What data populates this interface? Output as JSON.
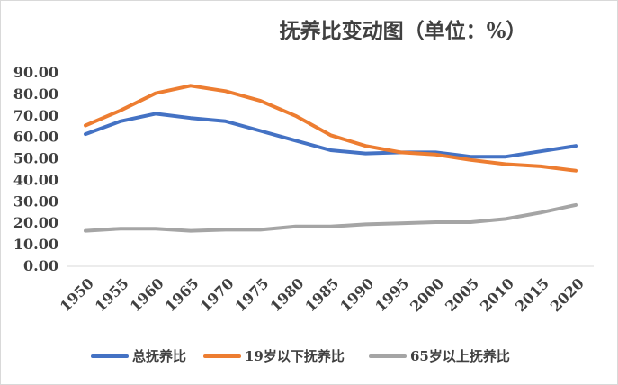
{
  "chart_data": {
    "type": "line",
    "title": "抚养比变动图（单位：%）",
    "x": [
      "1950",
      "1955",
      "1960",
      "1965",
      "1970",
      "1975",
      "1980",
      "1985",
      "1990",
      "1995",
      "2000",
      "2005",
      "2010",
      "2015",
      "2020"
    ],
    "ylim": [
      0,
      90
    ],
    "yticks": [
      0,
      10,
      20,
      30,
      40,
      50,
      60,
      70,
      80,
      90
    ],
    "ytick_labels": [
      "0.00",
      "10.00",
      "20.00",
      "30.00",
      "40.00",
      "50.00",
      "60.00",
      "70.00",
      "80.00",
      "90.00"
    ],
    "grid": false,
    "legend_position": "bottom",
    "series": [
      {
        "name": "总抚养比",
        "color": "#4472c4",
        "values": [
          61.5,
          67.5,
          71.0,
          69.0,
          67.5,
          63.0,
          58.5,
          54.0,
          52.5,
          53.0,
          53.0,
          51.0,
          51.0,
          53.5,
          56.0
        ]
      },
      {
        "name": "19岁以下抚养比",
        "color": "#ed7d31",
        "values": [
          65.5,
          72.5,
          80.5,
          84.0,
          81.5,
          77.0,
          70.0,
          61.0,
          56.0,
          53.0,
          52.0,
          49.5,
          47.5,
          46.5,
          44.5
        ]
      },
      {
        "name": "65岁以上抚养比",
        "color": "#a5a5a5",
        "values": [
          16.5,
          17.5,
          17.5,
          16.5,
          17.0,
          17.0,
          18.5,
          18.5,
          19.5,
          20.0,
          20.5,
          20.5,
          22.0,
          25.0,
          28.5
        ]
      }
    ]
  }
}
